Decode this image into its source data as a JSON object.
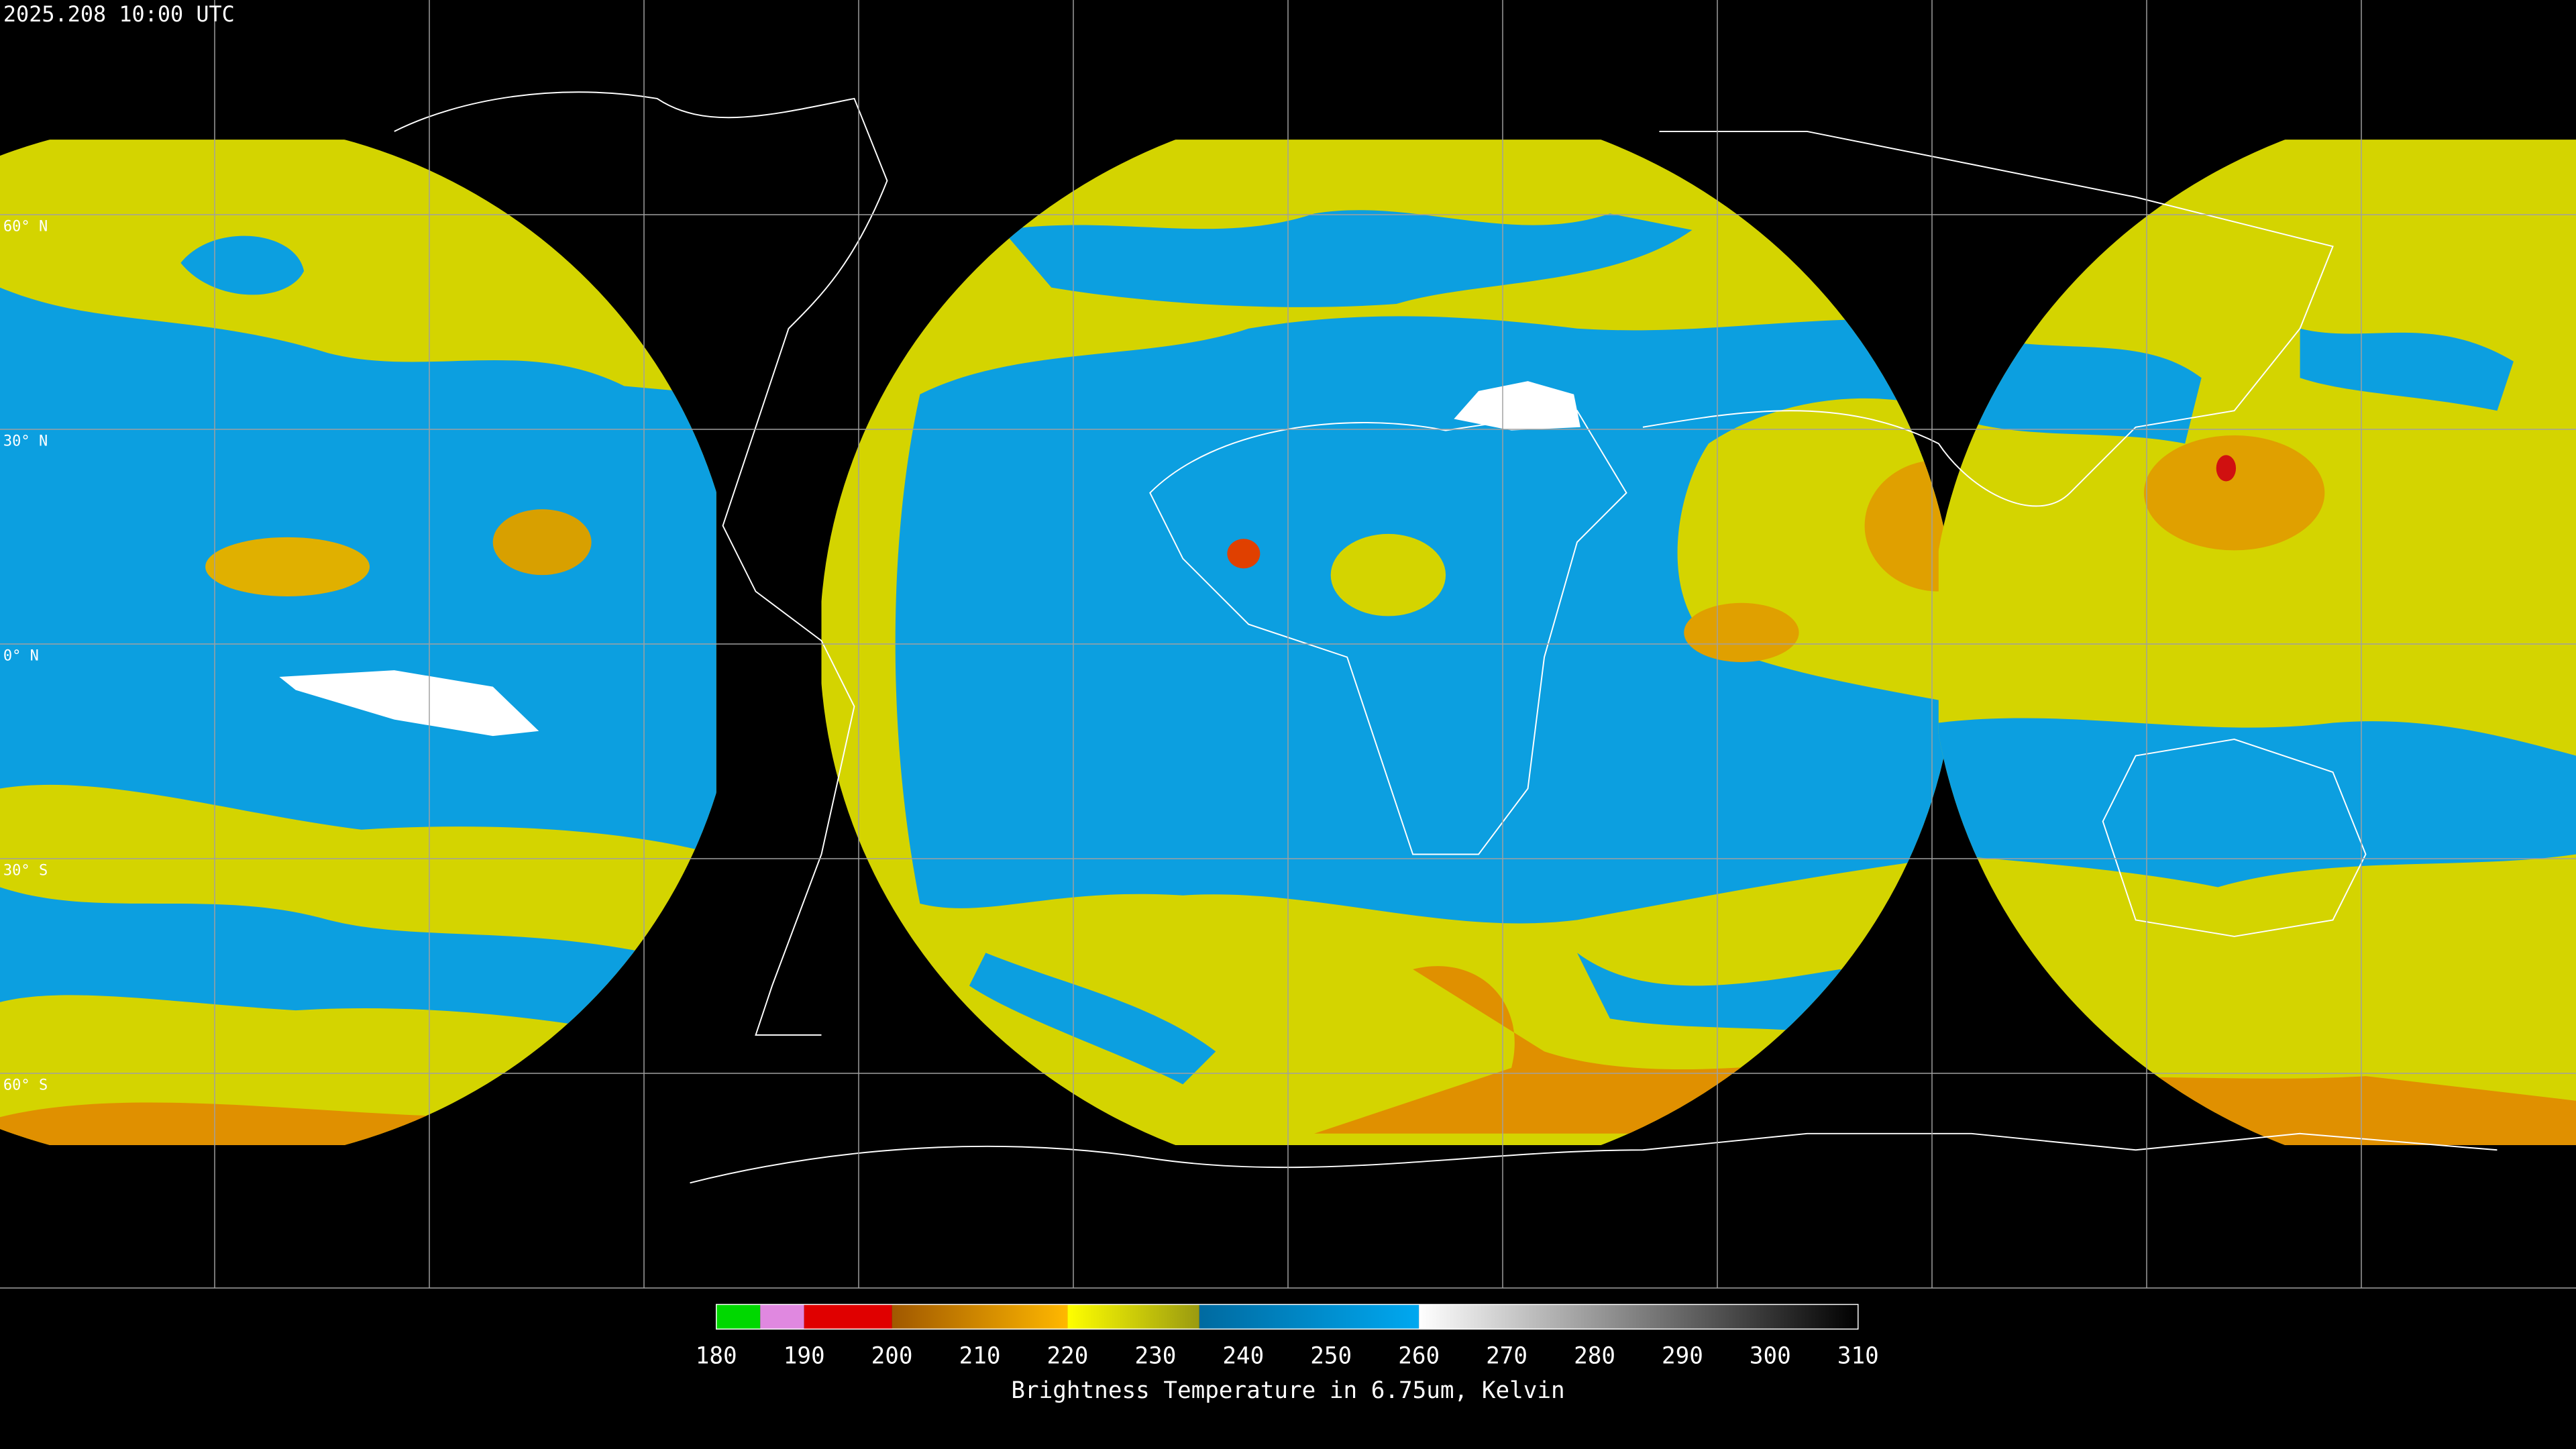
{
  "header": {
    "title": "2025.208 10:00 UTC"
  },
  "map": {
    "latitude_labels": [
      "60° N",
      "30° N",
      "0° N",
      "30° S",
      "60° S"
    ]
  },
  "colorbar": {
    "lim": [
      180,
      310
    ],
    "ticks": [
      180,
      190,
      200,
      210,
      220,
      230,
      240,
      250,
      260,
      270,
      280,
      290,
      300,
      310
    ],
    "segments": [
      {
        "from": 180,
        "to": 185,
        "colors": [
          "#00d800",
          "#00d800"
        ]
      },
      {
        "from": 185,
        "to": 190,
        "colors": [
          "#e088e0",
          "#e088e0"
        ]
      },
      {
        "from": 190,
        "to": 200,
        "colors": [
          "#e00000",
          "#e00000"
        ]
      },
      {
        "from": 200,
        "to": 220,
        "colors": [
          "#a05800",
          "#ffb800"
        ]
      },
      {
        "from": 220,
        "to": 235,
        "colors": [
          "#ffff00",
          "#9a9a10"
        ]
      },
      {
        "from": 235,
        "to": 260,
        "colors": [
          "#006aa0",
          "#00a8f0"
        ]
      },
      {
        "from": 260,
        "to": 310,
        "colors": [
          "#ffffff",
          "#000000"
        ]
      }
    ],
    "label": "Brightness Temperature in 6.75um, Kelvin"
  }
}
